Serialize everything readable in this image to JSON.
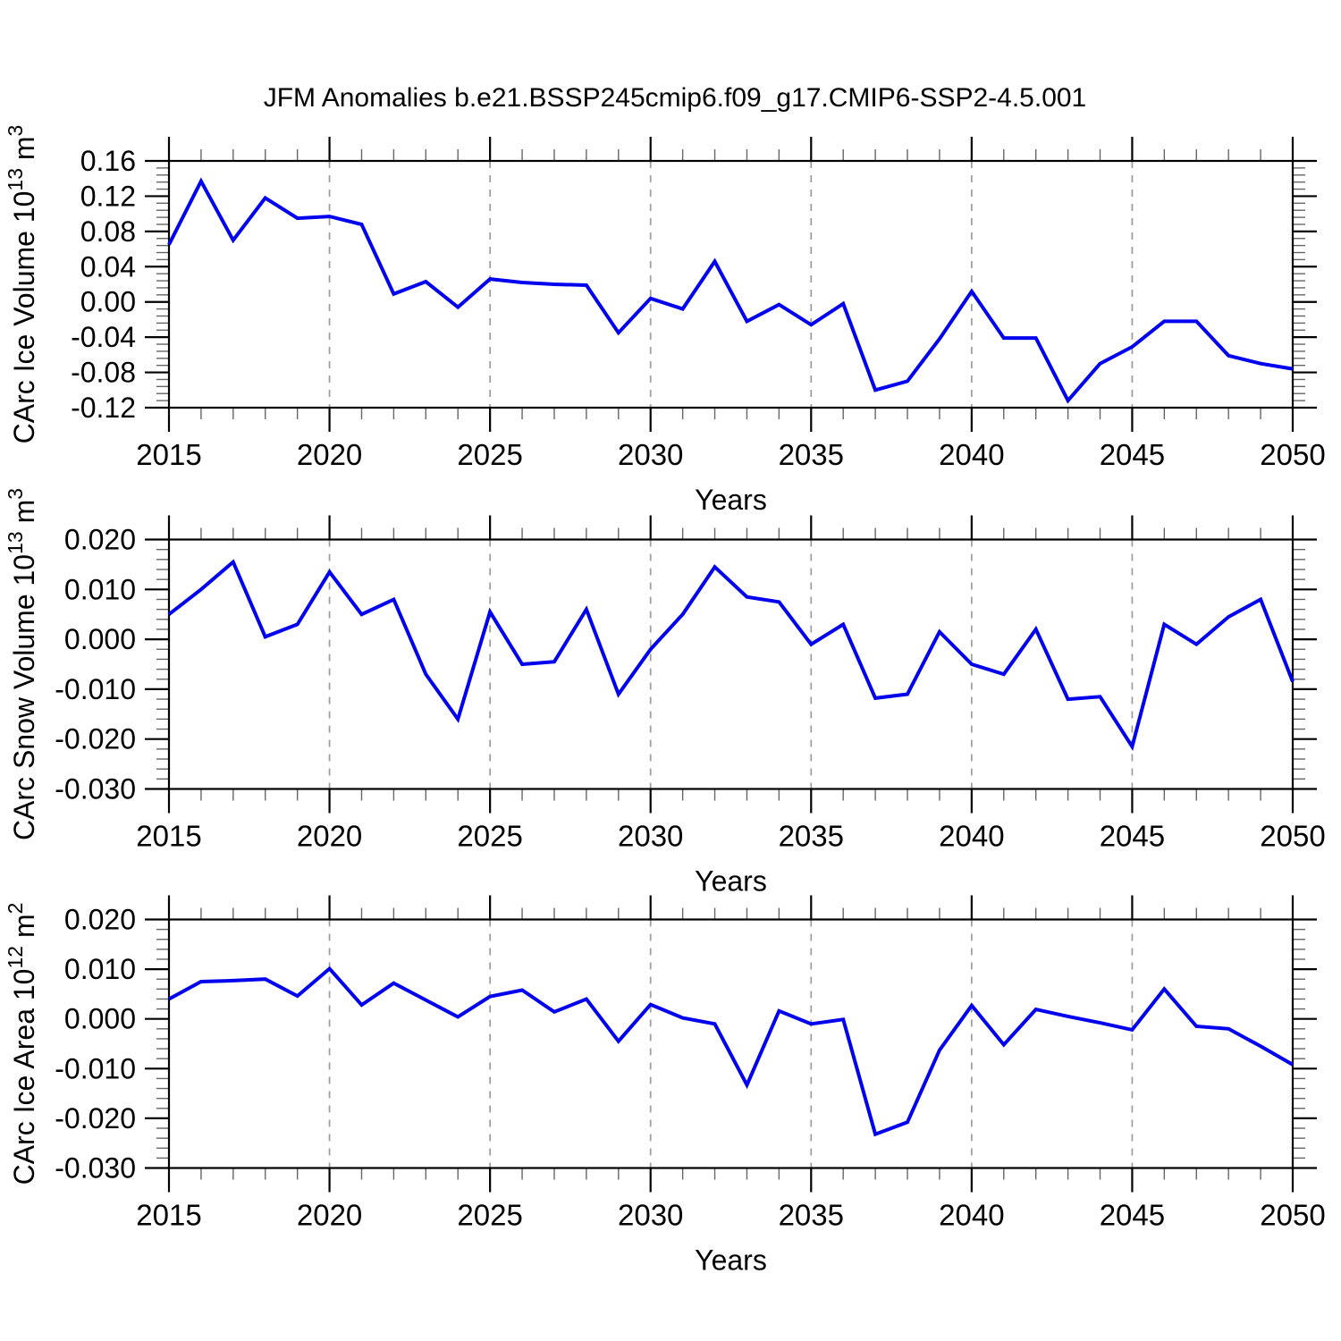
{
  "title": "JFM Anomalies b.e21.BSSP245cmip6.f09_g17.CMIP6-SSP2-4.5.001",
  "xlabel": "Years",
  "line_color": "#0000ee",
  "grid_color": "#a0a0a0",
  "chart_data": {
    "type": "line",
    "x": [
      2015,
      2016,
      2017,
      2018,
      2019,
      2020,
      2021,
      2022,
      2023,
      2024,
      2025,
      2026,
      2027,
      2028,
      2029,
      2030,
      2031,
      2032,
      2033,
      2034,
      2035,
      2036,
      2037,
      2038,
      2039,
      2040,
      2041,
      2042,
      2043,
      2044,
      2045,
      2046,
      2047,
      2048,
      2049,
      2050
    ],
    "xlim": [
      2015,
      2050
    ],
    "xticks": {
      "major": [
        2015,
        2020,
        2025,
        2030,
        2035,
        2040,
        2045,
        2050
      ],
      "labels": [
        "2015",
        "2020",
        "2025",
        "2030",
        "2035",
        "2040",
        "2045",
        "2050"
      ],
      "minor_step": 1,
      "grid": [
        2020,
        2025,
        2030,
        2035,
        2040,
        2045
      ]
    },
    "legend": "none",
    "grid": "vertical-dashed",
    "panels": [
      {
        "id": "carc-ice-volume",
        "ylabel": {
          "name": "CArc Ice Volume",
          "base": "10",
          "exponent": "13",
          "unit": "m",
          "unit_exponent": "3"
        },
        "ylim": [
          -0.12,
          0.16
        ],
        "yticks": {
          "values": [
            -0.12,
            -0.08,
            -0.04,
            0.0,
            0.04,
            0.08,
            0.12,
            0.16
          ],
          "labels": [
            "-0.12",
            "-0.08",
            "-0.04",
            "0.00",
            "0.04",
            "0.08",
            "0.12",
            "0.16"
          ],
          "minor_step": 0.008
        },
        "values": [
          0.065,
          0.137,
          0.07,
          0.118,
          0.095,
          0.097,
          0.088,
          0.009,
          0.023,
          -0.006,
          0.026,
          0.022,
          0.02,
          0.019,
          -0.035,
          0.004,
          -0.008,
          0.046,
          -0.022,
          -0.003,
          -0.026,
          -0.002,
          -0.1,
          -0.09,
          -0.042,
          0.012,
          -0.041,
          -0.041,
          -0.112,
          -0.07,
          -0.051,
          -0.022,
          -0.022,
          -0.061,
          -0.07,
          -0.076
        ]
      },
      {
        "id": "carc-snow-volume",
        "ylabel": {
          "name": "CArc Snow Volume",
          "base": "10",
          "exponent": "13",
          "unit": "m",
          "unit_exponent": "3"
        },
        "ylim": [
          -0.03,
          0.02
        ],
        "yticks": {
          "values": [
            -0.03,
            -0.02,
            -0.01,
            0.0,
            0.01,
            0.02
          ],
          "labels": [
            "-0.030",
            "-0.020",
            "-0.010",
            "0.000",
            "0.010",
            "0.020"
          ],
          "minor_step": 0.002
        },
        "values": [
          0.005,
          0.01,
          0.0155,
          0.0005,
          0.003,
          0.0135,
          0.005,
          0.008,
          -0.007,
          -0.016,
          0.0055,
          -0.005,
          -0.0045,
          0.006,
          -0.011,
          -0.002,
          0.005,
          0.0145,
          0.0085,
          0.0075,
          -0.001,
          0.003,
          -0.0118,
          -0.011,
          0.0015,
          -0.005,
          -0.007,
          0.002,
          -0.012,
          -0.0115,
          -0.0215,
          0.003,
          -0.001,
          0.0045,
          0.008,
          -0.0085
        ]
      },
      {
        "id": "carc-ice-area",
        "ylabel": {
          "name": "CArc Ice Area",
          "base": "10",
          "exponent": "12",
          "unit": "m",
          "unit_exponent": "2"
        },
        "ylim": [
          -0.03,
          0.02
        ],
        "yticks": {
          "values": [
            -0.03,
            -0.02,
            -0.01,
            0.0,
            0.01,
            0.02
          ],
          "labels": [
            "-0.030",
            "-0.020",
            "-0.010",
            "0.000",
            "0.010",
            "0.020"
          ],
          "minor_step": 0.002
        },
        "values": [
          0.004,
          0.0075,
          0.0077,
          0.008,
          0.0046,
          0.0101,
          0.0028,
          0.0072,
          0.0038,
          0.0004,
          0.0045,
          0.0058,
          0.0014,
          0.004,
          -0.0045,
          0.0029,
          0.0002,
          -0.001,
          -0.0133,
          0.0016,
          -0.001,
          -0.0001,
          -0.0232,
          -0.0208,
          -0.0063,
          0.0027,
          -0.0052,
          0.0019,
          0.0005,
          -0.0008,
          -0.0022,
          0.006,
          -0.0015,
          -0.002,
          -0.0055,
          -0.0092
        ]
      }
    ]
  }
}
